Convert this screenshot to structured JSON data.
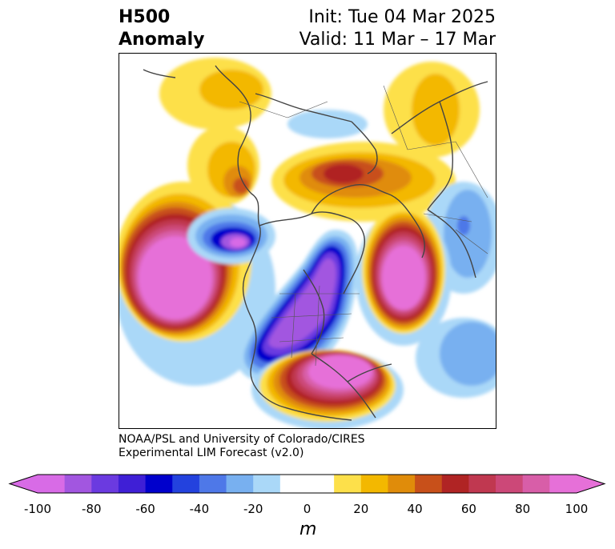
{
  "title": {
    "left_line1": "H500",
    "left_line2": "Anomaly",
    "right_line1": "Init: Tue 04 Mar 2025",
    "right_line2": "Valid: 11 Mar – 17 Mar"
  },
  "credit": {
    "line1": "NOAA/PSL and University of Colorado/CIRES",
    "line2": "Experimental LIM Forecast (v2.0)"
  },
  "colorbar": {
    "unit": "m",
    "min": -100,
    "max": 100,
    "step": 10,
    "extend": "both",
    "tick_labels": [
      "-100",
      "-80",
      "-60",
      "-40",
      "-20",
      "0",
      "20",
      "40",
      "60",
      "80",
      "100"
    ],
    "colors": [
      "#d86be6",
      "#a256e0",
      "#6b3ae0",
      "#3f1fd6",
      "#0000cc",
      "#2342de",
      "#4e78e8",
      "#78b0f0",
      "#aad8f8",
      "#ffffff",
      "#ffffff",
      "#fde04a",
      "#f3b800",
      "#e08c0a",
      "#c8501a",
      "#b02424",
      "#c03850",
      "#cc4878",
      "#d85ea8",
      "#e670d8"
    ]
  },
  "map": {
    "projection": "north-polar-stereographic",
    "anomaly_centers": [
      {
        "region": "north-pacific",
        "sign": "positive",
        "peak_m": 100
      },
      {
        "region": "north-atlantic",
        "sign": "positive",
        "peak_m": 100
      },
      {
        "region": "southeastern-us",
        "sign": "positive",
        "peak_m": 100
      },
      {
        "region": "central-north-america",
        "sign": "negative",
        "peak_m": -100
      },
      {
        "region": "northeast-pacific-coast",
        "sign": "negative",
        "peak_m": -100
      },
      {
        "region": "barents-kara-sea",
        "sign": "positive",
        "peak_m": 60
      },
      {
        "region": "east-siberia",
        "sign": "positive",
        "peak_m": 50
      },
      {
        "region": "northern-europe",
        "sign": "positive",
        "peak_m": 40
      },
      {
        "region": "central-arctic",
        "sign": "negative",
        "peak_m": -20
      }
    ]
  }
}
